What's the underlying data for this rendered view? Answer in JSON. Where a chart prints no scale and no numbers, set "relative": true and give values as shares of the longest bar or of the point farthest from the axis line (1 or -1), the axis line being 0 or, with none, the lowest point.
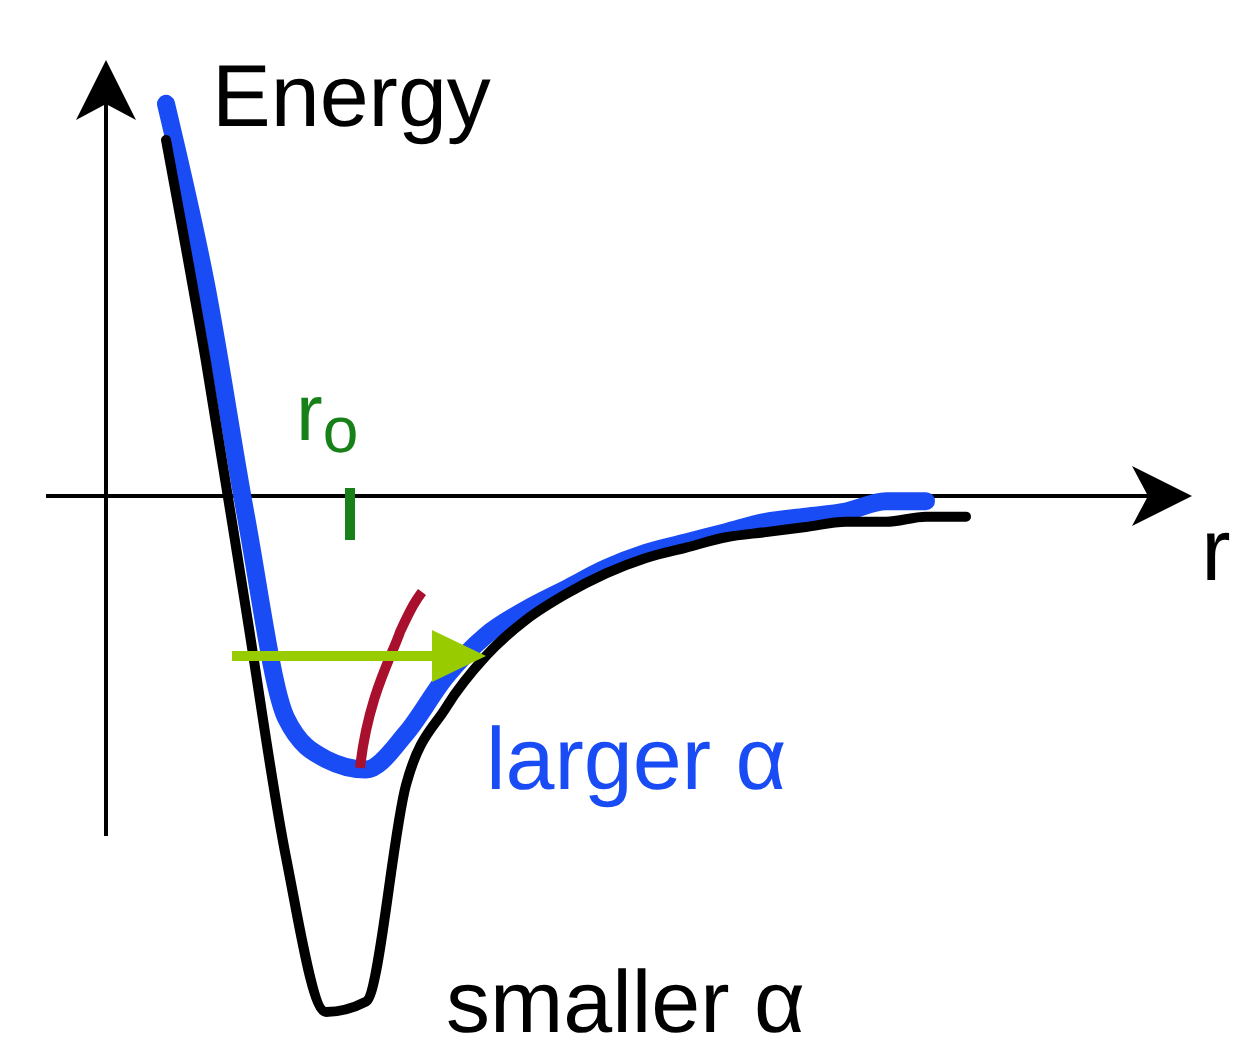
{
  "chart_data": {
    "type": "line",
    "relative": true,
    "xlabel": "r",
    "ylabel": "Energy",
    "categories": [
      null,
      null,
      null,
      null,
      null,
      null,
      null,
      null,
      null,
      null,
      null,
      null,
      null,
      null,
      null,
      null,
      null,
      null,
      null,
      null,
      null
    ],
    "series": [
      {
        "name": "larger α",
        "color": "#1a4cf5",
        "values": [
          0.76,
          0.41,
          -0.04,
          -0.43,
          -0.51,
          -0.53,
          -0.46,
          -0.35,
          -0.27,
          -0.22,
          -0.18,
          -0.14,
          -0.11,
          -0.09,
          -0.07,
          -0.05,
          -0.04,
          -0.03,
          -0.01,
          -0.01,
          null
        ]
      },
      {
        "name": "smaller α",
        "color": "#000000",
        "values": [
          0.69,
          0.26,
          -0.22,
          -0.7,
          -1.0,
          -0.98,
          -0.56,
          -0.41,
          -0.31,
          -0.24,
          -0.19,
          -0.15,
          -0.12,
          -0.1,
          -0.08,
          -0.07,
          -0.06,
          -0.05,
          -0.05,
          -0.04,
          -0.04
        ]
      }
    ],
    "annotations": [
      "r$_{o}$"
    ]
  }
}
